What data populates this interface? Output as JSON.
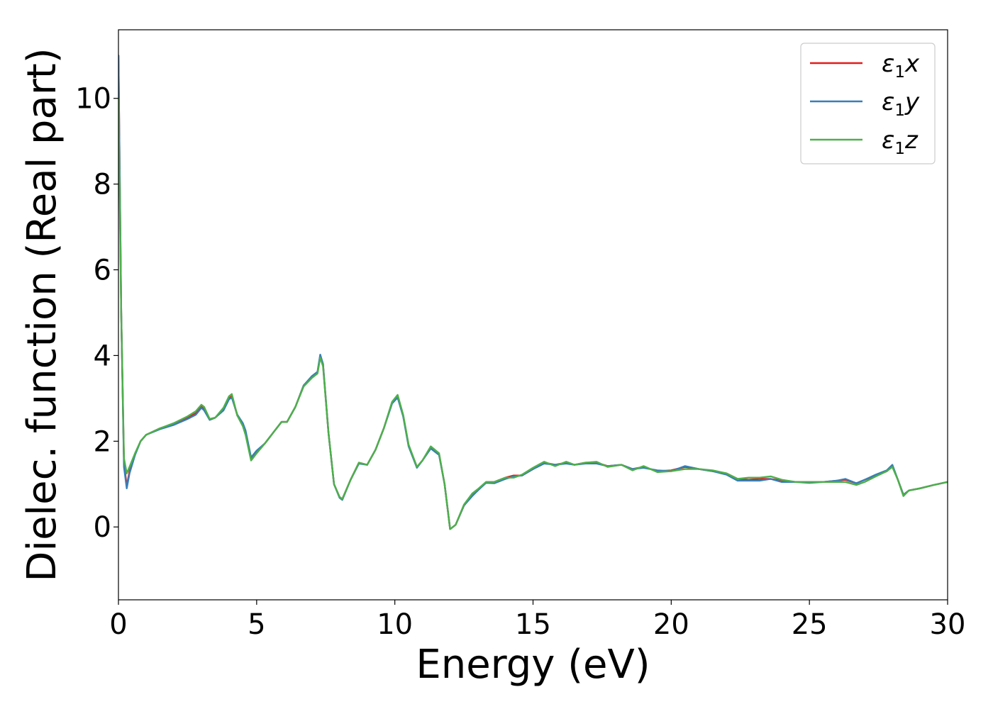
{
  "chart_data": {
    "type": "line",
    "title": "",
    "xlabel": "Energy (eV)",
    "ylabel": "Dielec. function (Real part)",
    "xlim": [
      0,
      30
    ],
    "ylim": [
      -1.7,
      11.6
    ],
    "xticks": [
      0,
      5,
      10,
      15,
      20,
      25,
      30
    ],
    "yticks": [
      0,
      2,
      4,
      6,
      8,
      10
    ],
    "grid": false,
    "legend_position": "top-right",
    "series": [
      {
        "name": "ε₁x",
        "symbol": "ε",
        "subscript": "1",
        "axis": "x",
        "color": "#e41a1c",
        "points": [
          [
            0.0,
            11.0
          ],
          [
            0.1,
            5.0
          ],
          [
            0.2,
            1.5
          ],
          [
            0.3,
            0.95
          ],
          [
            0.4,
            1.3
          ],
          [
            0.6,
            1.7
          ],
          [
            0.8,
            2.0
          ],
          [
            1.0,
            2.15
          ],
          [
            1.5,
            2.3
          ],
          [
            2.0,
            2.4
          ],
          [
            2.5,
            2.55
          ],
          [
            2.8,
            2.65
          ],
          [
            3.0,
            2.8
          ],
          [
            3.1,
            2.75
          ],
          [
            3.3,
            2.5
          ],
          [
            3.5,
            2.55
          ],
          [
            3.8,
            2.75
          ],
          [
            4.0,
            3.0
          ],
          [
            4.1,
            3.05
          ],
          [
            4.3,
            2.6
          ],
          [
            4.5,
            2.4
          ],
          [
            4.6,
            2.2
          ],
          [
            4.8,
            1.6
          ],
          [
            5.0,
            1.75
          ],
          [
            5.3,
            1.95
          ],
          [
            5.6,
            2.2
          ],
          [
            5.9,
            2.45
          ],
          [
            6.1,
            2.45
          ],
          [
            6.4,
            2.8
          ],
          [
            6.7,
            3.3
          ],
          [
            7.0,
            3.5
          ],
          [
            7.2,
            3.6
          ],
          [
            7.3,
            4.0
          ],
          [
            7.4,
            3.8
          ],
          [
            7.6,
            2.2
          ],
          [
            7.8,
            1.0
          ],
          [
            8.0,
            0.7
          ],
          [
            8.1,
            0.65
          ],
          [
            8.4,
            1.1
          ],
          [
            8.7,
            1.5
          ],
          [
            9.0,
            1.45
          ],
          [
            9.3,
            1.8
          ],
          [
            9.6,
            2.3
          ],
          [
            9.9,
            2.9
          ],
          [
            10.1,
            3.05
          ],
          [
            10.3,
            2.6
          ],
          [
            10.5,
            1.9
          ],
          [
            10.8,
            1.4
          ],
          [
            11.0,
            1.55
          ],
          [
            11.3,
            1.85
          ],
          [
            11.6,
            1.7
          ],
          [
            11.8,
            1.0
          ],
          [
            12.0,
            -0.05
          ],
          [
            12.2,
            0.05
          ],
          [
            12.5,
            0.5
          ],
          [
            12.8,
            0.75
          ],
          [
            13.0,
            0.85
          ],
          [
            13.3,
            1.05
          ],
          [
            13.6,
            1.05
          ],
          [
            14.0,
            1.15
          ],
          [
            14.3,
            1.2
          ],
          [
            14.6,
            1.2
          ],
          [
            15.0,
            1.35
          ],
          [
            15.4,
            1.5
          ],
          [
            15.8,
            1.45
          ],
          [
            16.2,
            1.5
          ],
          [
            16.5,
            1.45
          ],
          [
            16.9,
            1.5
          ],
          [
            17.3,
            1.5
          ],
          [
            17.7,
            1.42
          ],
          [
            18.2,
            1.45
          ],
          [
            18.6,
            1.35
          ],
          [
            19.0,
            1.4
          ],
          [
            19.5,
            1.3
          ],
          [
            20.0,
            1.32
          ],
          [
            20.5,
            1.4
          ],
          [
            21.0,
            1.35
          ],
          [
            21.5,
            1.3
          ],
          [
            22.0,
            1.25
          ],
          [
            22.4,
            1.12
          ],
          [
            22.8,
            1.1
          ],
          [
            23.2,
            1.12
          ],
          [
            23.6,
            1.12
          ],
          [
            24.0,
            1.08
          ],
          [
            24.5,
            1.05
          ],
          [
            25.0,
            1.05
          ],
          [
            25.5,
            1.05
          ],
          [
            26.0,
            1.08
          ],
          [
            26.3,
            1.1
          ],
          [
            26.7,
            1.02
          ],
          [
            27.0,
            1.1
          ],
          [
            27.4,
            1.2
          ],
          [
            27.8,
            1.3
          ],
          [
            28.0,
            1.42
          ],
          [
            28.2,
            1.1
          ],
          [
            28.4,
            0.75
          ],
          [
            28.6,
            0.85
          ],
          [
            29.0,
            0.9
          ],
          [
            29.5,
            0.98
          ],
          [
            30.0,
            1.05
          ]
        ]
      },
      {
        "name": "ε₁y",
        "symbol": "ε",
        "subscript": "1",
        "axis": "y",
        "color": "#377eb8",
        "points": [
          [
            0.0,
            11.0
          ],
          [
            0.1,
            5.0
          ],
          [
            0.2,
            1.4
          ],
          [
            0.3,
            0.9
          ],
          [
            0.4,
            1.25
          ],
          [
            0.6,
            1.68
          ],
          [
            0.8,
            2.0
          ],
          [
            1.0,
            2.15
          ],
          [
            1.5,
            2.28
          ],
          [
            2.0,
            2.38
          ],
          [
            2.5,
            2.52
          ],
          [
            2.8,
            2.62
          ],
          [
            3.0,
            2.78
          ],
          [
            3.1,
            2.72
          ],
          [
            3.3,
            2.5
          ],
          [
            3.5,
            2.55
          ],
          [
            3.8,
            2.72
          ],
          [
            4.0,
            2.98
          ],
          [
            4.1,
            3.02
          ],
          [
            4.3,
            2.62
          ],
          [
            4.5,
            2.42
          ],
          [
            4.6,
            2.25
          ],
          [
            4.8,
            1.62
          ],
          [
            5.0,
            1.78
          ],
          [
            5.3,
            1.95
          ],
          [
            5.6,
            2.2
          ],
          [
            5.9,
            2.45
          ],
          [
            6.1,
            2.45
          ],
          [
            6.4,
            2.8
          ],
          [
            6.7,
            3.3
          ],
          [
            7.0,
            3.52
          ],
          [
            7.2,
            3.62
          ],
          [
            7.3,
            4.02
          ],
          [
            7.4,
            3.8
          ],
          [
            7.6,
            2.2
          ],
          [
            7.8,
            1.0
          ],
          [
            8.0,
            0.68
          ],
          [
            8.1,
            0.63
          ],
          [
            8.4,
            1.1
          ],
          [
            8.7,
            1.48
          ],
          [
            9.0,
            1.45
          ],
          [
            9.3,
            1.8
          ],
          [
            9.6,
            2.3
          ],
          [
            9.9,
            2.88
          ],
          [
            10.1,
            3.02
          ],
          [
            10.3,
            2.58
          ],
          [
            10.5,
            1.88
          ],
          [
            10.8,
            1.38
          ],
          [
            11.0,
            1.55
          ],
          [
            11.3,
            1.83
          ],
          [
            11.6,
            1.68
          ],
          [
            11.8,
            1.0
          ],
          [
            12.0,
            -0.05
          ],
          [
            12.2,
            0.05
          ],
          [
            12.5,
            0.5
          ],
          [
            12.8,
            0.72
          ],
          [
            13.0,
            0.85
          ],
          [
            13.3,
            1.03
          ],
          [
            13.6,
            1.02
          ],
          [
            14.0,
            1.12
          ],
          [
            14.3,
            1.18
          ],
          [
            14.6,
            1.2
          ],
          [
            15.0,
            1.35
          ],
          [
            15.4,
            1.48
          ],
          [
            15.8,
            1.45
          ],
          [
            16.2,
            1.48
          ],
          [
            16.5,
            1.45
          ],
          [
            16.9,
            1.48
          ],
          [
            17.3,
            1.48
          ],
          [
            17.7,
            1.42
          ],
          [
            18.2,
            1.45
          ],
          [
            18.6,
            1.35
          ],
          [
            19.0,
            1.38
          ],
          [
            19.5,
            1.32
          ],
          [
            20.0,
            1.3
          ],
          [
            20.5,
            1.42
          ],
          [
            21.0,
            1.35
          ],
          [
            21.5,
            1.3
          ],
          [
            22.0,
            1.22
          ],
          [
            22.4,
            1.08
          ],
          [
            22.8,
            1.08
          ],
          [
            23.2,
            1.08
          ],
          [
            23.6,
            1.12
          ],
          [
            24.0,
            1.05
          ],
          [
            24.5,
            1.05
          ],
          [
            25.0,
            1.03
          ],
          [
            25.5,
            1.05
          ],
          [
            26.0,
            1.08
          ],
          [
            26.3,
            1.12
          ],
          [
            26.7,
            1.02
          ],
          [
            27.0,
            1.1
          ],
          [
            27.4,
            1.22
          ],
          [
            27.8,
            1.32
          ],
          [
            28.0,
            1.45
          ],
          [
            28.2,
            1.1
          ],
          [
            28.4,
            0.75
          ],
          [
            28.6,
            0.85
          ],
          [
            29.0,
            0.9
          ],
          [
            29.5,
            0.98
          ],
          [
            30.0,
            1.05
          ]
        ]
      },
      {
        "name": "ε₁z",
        "symbol": "ε",
        "subscript": "1",
        "axis": "z",
        "color": "#4daf4a",
        "points": [
          [
            0.0,
            10.0
          ],
          [
            0.1,
            5.0
          ],
          [
            0.2,
            1.6
          ],
          [
            0.3,
            1.25
          ],
          [
            0.4,
            1.4
          ],
          [
            0.6,
            1.72
          ],
          [
            0.8,
            2.0
          ],
          [
            1.0,
            2.15
          ],
          [
            1.5,
            2.3
          ],
          [
            2.0,
            2.42
          ],
          [
            2.5,
            2.58
          ],
          [
            2.8,
            2.7
          ],
          [
            3.0,
            2.85
          ],
          [
            3.1,
            2.8
          ],
          [
            3.3,
            2.52
          ],
          [
            3.5,
            2.55
          ],
          [
            3.8,
            2.78
          ],
          [
            4.0,
            3.05
          ],
          [
            4.1,
            3.1
          ],
          [
            4.3,
            2.6
          ],
          [
            4.5,
            2.35
          ],
          [
            4.6,
            2.15
          ],
          [
            4.8,
            1.55
          ],
          [
            5.0,
            1.72
          ],
          [
            5.3,
            1.95
          ],
          [
            5.6,
            2.2
          ],
          [
            5.9,
            2.45
          ],
          [
            6.1,
            2.45
          ],
          [
            6.4,
            2.8
          ],
          [
            6.7,
            3.28
          ],
          [
            7.0,
            3.48
          ],
          [
            7.2,
            3.58
          ],
          [
            7.3,
            3.95
          ],
          [
            7.4,
            3.75
          ],
          [
            7.6,
            2.2
          ],
          [
            7.8,
            1.0
          ],
          [
            8.0,
            0.7
          ],
          [
            8.1,
            0.65
          ],
          [
            8.4,
            1.1
          ],
          [
            8.7,
            1.5
          ],
          [
            9.0,
            1.45
          ],
          [
            9.3,
            1.8
          ],
          [
            9.6,
            2.3
          ],
          [
            9.9,
            2.92
          ],
          [
            10.1,
            3.08
          ],
          [
            10.3,
            2.62
          ],
          [
            10.5,
            1.92
          ],
          [
            10.8,
            1.4
          ],
          [
            11.0,
            1.55
          ],
          [
            11.3,
            1.88
          ],
          [
            11.6,
            1.72
          ],
          [
            11.8,
            1.0
          ],
          [
            12.0,
            -0.05
          ],
          [
            12.2,
            0.05
          ],
          [
            12.5,
            0.52
          ],
          [
            12.8,
            0.78
          ],
          [
            13.0,
            0.88
          ],
          [
            13.3,
            1.05
          ],
          [
            13.6,
            1.05
          ],
          [
            14.0,
            1.15
          ],
          [
            14.3,
            1.15
          ],
          [
            14.6,
            1.22
          ],
          [
            15.0,
            1.38
          ],
          [
            15.4,
            1.52
          ],
          [
            15.8,
            1.42
          ],
          [
            16.2,
            1.52
          ],
          [
            16.5,
            1.45
          ],
          [
            16.9,
            1.5
          ],
          [
            17.3,
            1.52
          ],
          [
            17.7,
            1.4
          ],
          [
            18.2,
            1.45
          ],
          [
            18.6,
            1.32
          ],
          [
            19.0,
            1.42
          ],
          [
            19.5,
            1.28
          ],
          [
            20.0,
            1.3
          ],
          [
            20.5,
            1.35
          ],
          [
            21.0,
            1.35
          ],
          [
            21.5,
            1.32
          ],
          [
            22.0,
            1.25
          ],
          [
            22.4,
            1.12
          ],
          [
            22.8,
            1.15
          ],
          [
            23.2,
            1.15
          ],
          [
            23.6,
            1.18
          ],
          [
            24.0,
            1.1
          ],
          [
            24.5,
            1.05
          ],
          [
            25.0,
            1.05
          ],
          [
            25.5,
            1.05
          ],
          [
            26.0,
            1.05
          ],
          [
            26.3,
            1.05
          ],
          [
            26.7,
            0.98
          ],
          [
            27.0,
            1.05
          ],
          [
            27.4,
            1.18
          ],
          [
            27.8,
            1.3
          ],
          [
            28.0,
            1.4
          ],
          [
            28.2,
            1.1
          ],
          [
            28.4,
            0.72
          ],
          [
            28.6,
            0.85
          ],
          [
            29.0,
            0.9
          ],
          [
            29.5,
            0.98
          ],
          [
            30.0,
            1.05
          ]
        ]
      }
    ]
  }
}
